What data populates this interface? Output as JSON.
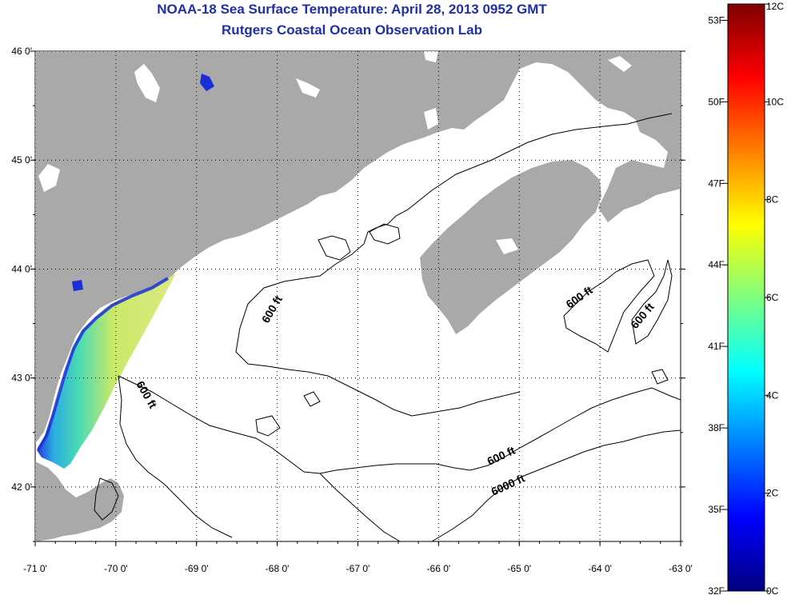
{
  "titles": {
    "line1": "NOAA-18 Sea Surface Temperature:  April 28, 2013 0952 GMT",
    "line2": "Rutgers Coastal Ocean Observation Lab"
  },
  "map": {
    "lat_labels": [
      {
        "value": 46,
        "label": "46 0'"
      },
      {
        "value": 45,
        "label": "45 0'"
      },
      {
        "value": 44,
        "label": "44 0'"
      },
      {
        "value": 43,
        "label": "43 0'"
      },
      {
        "value": 42,
        "label": "42 0'"
      }
    ],
    "lon_labels": [
      {
        "value": -71,
        "label": "-71 0'"
      },
      {
        "value": -70,
        "label": "-70 0'"
      },
      {
        "value": -69,
        "label": "-69 0'"
      },
      {
        "value": -68,
        "label": "-68 0'"
      },
      {
        "value": -67,
        "label": "-67 0'"
      },
      {
        "value": -66,
        "label": "-66 0'"
      },
      {
        "value": -65,
        "label": "-65 0'"
      },
      {
        "value": -64,
        "label": "-64 0'"
      },
      {
        "value": -63,
        "label": "-63 0'"
      }
    ],
    "lat_range": [
      41.5,
      46.0
    ],
    "lon_range": [
      -71.0,
      -63.0
    ],
    "grid": "dotted",
    "contour_labels": [
      "600 ft",
      "600 ft",
      "600 ft",
      "600 ft",
      "600 ft",
      "6000 ft"
    ],
    "land_color": "#a9a9a9",
    "ocean_color": "#ffffff"
  },
  "colorbar": {
    "c_labels": [
      "12C",
      "10C",
      "8C",
      "6C",
      "4C",
      "2C",
      "0C"
    ],
    "f_labels": [
      "53F",
      "50F",
      "47F",
      "44F",
      "41F",
      "38F",
      "35F",
      "32F"
    ],
    "c_range": [
      0,
      12
    ]
  }
}
